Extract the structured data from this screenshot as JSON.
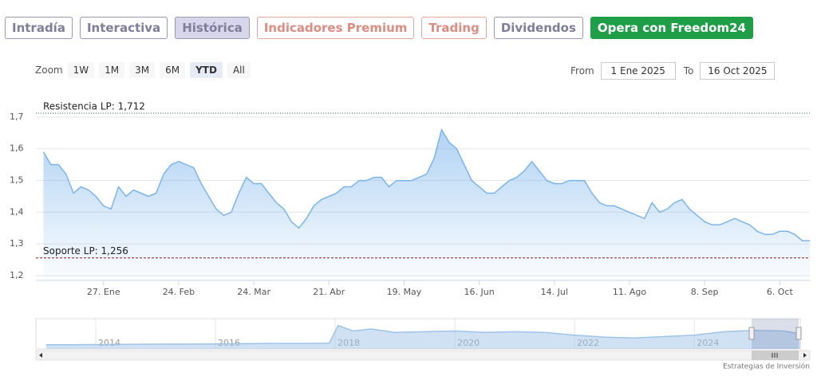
{
  "tabs": [
    "Intradía",
    "Interactiva",
    "Histórica",
    "Indicadores Premium",
    "Trading",
    "Dividendos",
    "Opera con Freedom24"
  ],
  "zoom": {
    "label": "Zoom",
    "buttons": [
      "1W",
      "1M",
      "3M",
      "6M",
      "YTD",
      "All"
    ]
  },
  "range": {
    "from_label": "From",
    "from": "1 Ene 2025",
    "to_label": "To",
    "to": "16 Oct 2025"
  },
  "credit": "Estrategias de Inversión",
  "chart_data": [
    {
      "type": "area",
      "color": "#7cb5ec",
      "categories": [
        null,
        null,
        null,
        null,
        null,
        null,
        null,
        null,
        "27. Ene",
        null,
        null,
        null,
        null,
        null,
        null,
        null,
        null,
        null,
        "24. Feb",
        null,
        null,
        null,
        null,
        null,
        null,
        null,
        null,
        null,
        "24. Mar",
        null,
        null,
        null,
        null,
        null,
        null,
        null,
        null,
        null,
        "21. Abr",
        null,
        null,
        null,
        null,
        null,
        null,
        null,
        null,
        null,
        "19. May",
        null,
        null,
        null,
        null,
        null,
        null,
        null,
        null,
        null,
        "16. Jun",
        null,
        null,
        null,
        null,
        null,
        null,
        null,
        null,
        null,
        "14. Jul",
        null,
        null,
        null,
        null,
        null,
        null,
        null,
        null,
        null,
        "11. Ago",
        null,
        null,
        null,
        null,
        null,
        null,
        null,
        null,
        null,
        "8. Sep",
        null,
        null,
        null,
        null,
        null,
        null,
        null,
        null,
        null,
        "6. Oct",
        null,
        null,
        null,
        null
      ],
      "values": [
        1.59,
        1.55,
        1.55,
        1.52,
        1.46,
        1.48,
        1.47,
        1.45,
        1.42,
        1.41,
        1.48,
        1.45,
        1.47,
        1.46,
        1.45,
        1.46,
        1.52,
        1.55,
        1.56,
        1.55,
        1.54,
        1.49,
        1.45,
        1.41,
        1.39,
        1.4,
        1.46,
        1.51,
        1.49,
        1.49,
        1.46,
        1.43,
        1.41,
        1.37,
        1.35,
        1.38,
        1.42,
        1.44,
        1.45,
        1.46,
        1.48,
        1.48,
        1.5,
        1.5,
        1.51,
        1.51,
        1.48,
        1.5,
        1.5,
        1.5,
        1.51,
        1.52,
        1.57,
        1.66,
        1.62,
        1.6,
        1.55,
        1.5,
        1.48,
        1.46,
        1.46,
        1.48,
        1.5,
        1.51,
        1.53,
        1.56,
        1.53,
        1.5,
        1.49,
        1.49,
        1.5,
        1.5,
        1.5,
        1.46,
        1.43,
        1.42,
        1.42,
        1.41,
        1.4,
        1.39,
        1.38,
        1.43,
        1.4,
        1.41,
        1.43,
        1.44,
        1.41,
        1.39,
        1.37,
        1.36,
        1.36,
        1.37,
        1.38,
        1.37,
        1.36,
        1.34,
        1.33,
        1.33,
        1.34,
        1.34,
        1.33,
        1.31,
        1.31
      ],
      "ylim": [
        1.185,
        1.755
      ],
      "yticks": [
        {
          "value": 1.2,
          "label": "1,2"
        },
        {
          "value": 1.3,
          "label": "1,3"
        },
        {
          "value": 1.4,
          "label": "1,4"
        },
        {
          "value": 1.5,
          "label": "1,5"
        },
        {
          "value": 1.6,
          "label": "1,6"
        },
        {
          "value": 1.7,
          "label": "1,7"
        }
      ],
      "grid": true,
      "plot_lines": [
        {
          "value": 1.712,
          "label": "Resistencia LP: 1,712",
          "color": "#2f7a3a"
        },
        {
          "value": 1.256,
          "label": "Soporte LP: 1,256",
          "color": "#8b1a1a"
        }
      ]
    },
    {
      "type": "area",
      "color": "#9fc4e8",
      "x": [
        2013.17,
        2013.5,
        2014,
        2014.5,
        2015,
        2015.5,
        2016,
        2016.5,
        2017,
        2017.5,
        2017.9,
        2018.05,
        2018.3,
        2018.6,
        2019,
        2019.5,
        2020,
        2020.5,
        2021,
        2021.5,
        2022,
        2022.5,
        2023,
        2023.5,
        2024,
        2024.5,
        2025,
        2025.5,
        2025.77
      ],
      "values": [
        0.3,
        0.3,
        0.32,
        0.33,
        0.35,
        0.35,
        0.36,
        0.38,
        0.4,
        0.4,
        0.42,
        1.7,
        1.3,
        1.45,
        1.2,
        1.25,
        1.3,
        1.2,
        1.25,
        1.2,
        1.0,
        0.85,
        0.8,
        0.9,
        1.0,
        1.25,
        1.35,
        1.3,
        1.1
      ],
      "xlim": [
        2013,
        2025.77
      ],
      "ylim": [
        0,
        2.2
      ],
      "xticks": [
        2014,
        2016,
        2018,
        2020,
        2022,
        2024
      ],
      "grid": true
    }
  ]
}
